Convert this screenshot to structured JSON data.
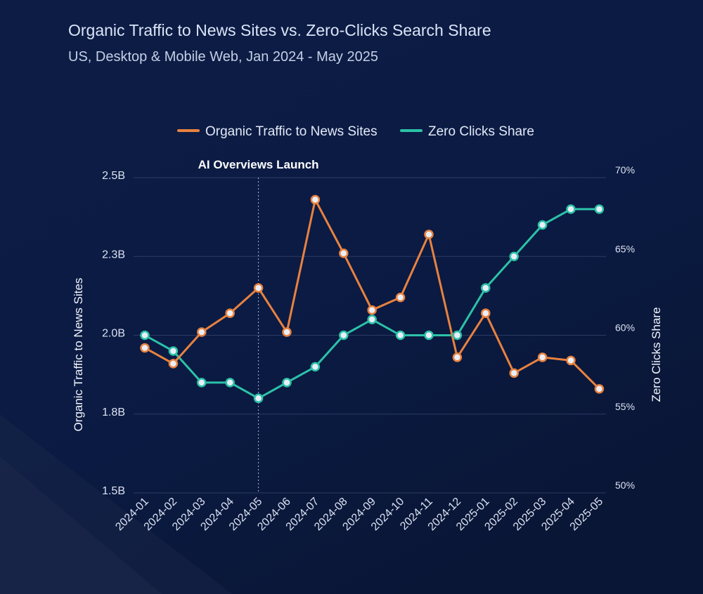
{
  "header": {
    "title": "Organic Traffic to News Sites vs. Zero-Clicks Search Share",
    "subtitle": "US, Desktop & Mobile Web, Jan 2024 - May 2025"
  },
  "colors": {
    "background": "#0b1a3f",
    "traffic": "#e8823f",
    "zero_clicks": "#2cc2a8",
    "marker_fill": "#e9eef7"
  },
  "chart_data": {
    "type": "line",
    "x": [
      "2024-01",
      "2024-02",
      "2024-03",
      "2024-04",
      "2024-05",
      "2024-06",
      "2024-07",
      "2024-08",
      "2024-09",
      "2024-10",
      "2024-11",
      "2024-12",
      "2025-01",
      "2025-02",
      "2025-03",
      "2025-04",
      "2025-05"
    ],
    "series": [
      {
        "name": "Organic Traffic to News Sites",
        "axis": "left",
        "values": [
          1.96,
          1.91,
          2.01,
          2.07,
          2.15,
          2.01,
          2.43,
          2.26,
          2.08,
          2.12,
          2.32,
          1.93,
          2.07,
          1.88,
          1.93,
          1.92,
          1.83
        ]
      },
      {
        "name": "Zero Clicks Share",
        "axis": "right",
        "values": [
          60,
          59,
          57,
          57,
          56,
          57,
          58,
          60,
          61,
          60,
          60,
          60,
          63,
          65,
          67,
          68,
          68
        ]
      }
    ],
    "y_left": {
      "label": "Organic Traffic to News Sites",
      "range": [
        1.5,
        2.5
      ],
      "ticks": [
        1.5,
        1.75,
        2.0,
        2.25,
        2.5
      ],
      "tick_labels": [
        "1.5B",
        "1.8B",
        "2.0B",
        "2.3B",
        "2.5B"
      ]
    },
    "y_right": {
      "label": "Zero Clicks Share",
      "range": [
        50,
        70
      ],
      "ticks": [
        50,
        55,
        60,
        65,
        70
      ],
      "tick_labels": [
        "50%",
        "55%",
        "60%",
        "65%",
        "70%"
      ]
    },
    "annotations": [
      {
        "x": "2024-05",
        "text": "AI Overviews Launch",
        "style": "dotted-vertical-line"
      }
    ],
    "legend_position": "top-center",
    "grid": "horizontal"
  }
}
